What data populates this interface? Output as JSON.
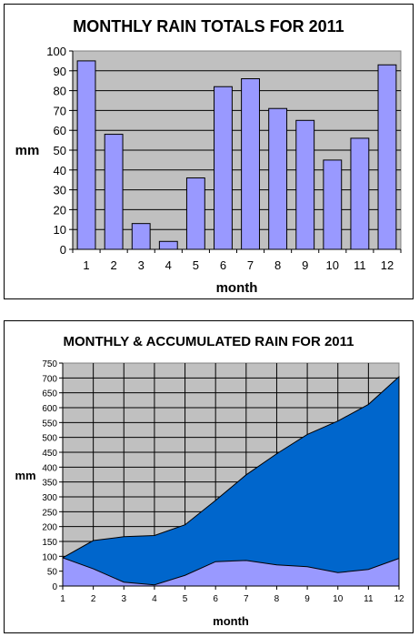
{
  "chart_data": [
    {
      "type": "bar",
      "title": "MONTHLY RAIN TOTALS FOR 2011",
      "xlabel": "month",
      "ylabel": "mm",
      "categories": [
        "1",
        "2",
        "3",
        "4",
        "5",
        "6",
        "7",
        "8",
        "9",
        "10",
        "11",
        "12"
      ],
      "values": [
        95,
        58,
        13,
        4,
        36,
        82,
        86,
        71,
        65,
        45,
        56,
        93
      ],
      "ylim": [
        0,
        100
      ],
      "yticks": [
        0,
        10,
        20,
        30,
        40,
        50,
        60,
        70,
        80,
        90,
        100
      ],
      "grid": true,
      "colors": {
        "bar": "#9999ff",
        "plot_bg": "#c0c0c0"
      }
    },
    {
      "type": "area",
      "title": "MONTHLY & ACCUMULATED RAIN FOR 2011",
      "xlabel": "month",
      "ylabel": "mm",
      "categories": [
        "1",
        "2",
        "3",
        "4",
        "5",
        "6",
        "7",
        "8",
        "9",
        "10",
        "11",
        "12"
      ],
      "series": [
        {
          "values": [
            95,
            153,
            166,
            170,
            206,
            288,
            374,
            445,
            510,
            555,
            611,
            704
          ]
        },
        {
          "values": [
            95,
            58,
            13,
            4,
            36,
            82,
            86,
            71,
            65,
            45,
            56,
            93
          ]
        }
      ],
      "ylim": [
        0,
        750
      ],
      "yticks": [
        0,
        50,
        100,
        150,
        200,
        250,
        300,
        350,
        400,
        450,
        500,
        550,
        600,
        650,
        700,
        750
      ],
      "grid": true,
      "colors": {
        "accumulated": "#0066cc",
        "monthly": "#9999ff",
        "plot_bg": "#c0c0c0"
      }
    }
  ]
}
